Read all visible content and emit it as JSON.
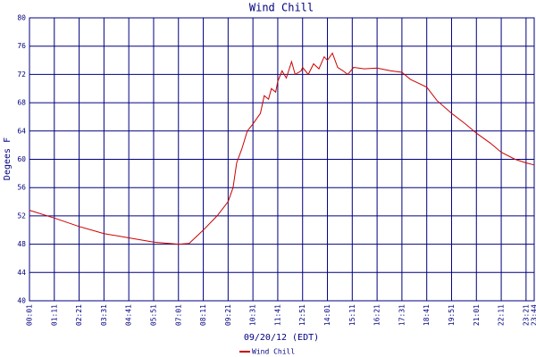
{
  "chart_data": {
    "type": "line",
    "title": "Wind Chill",
    "x_label": "09/20/12 (EDT)",
    "y_label": "Degees F",
    "xlim": [
      1,
      1424
    ],
    "ylim": [
      40,
      80
    ],
    "yticks": [
      40,
      44,
      48,
      52,
      56,
      60,
      64,
      68,
      72,
      76,
      80
    ],
    "xticks": [
      {
        "value": 1,
        "label": "00:01"
      },
      {
        "value": 71,
        "label": "01:11"
      },
      {
        "value": 141,
        "label": "02:21"
      },
      {
        "value": 211,
        "label": "03:31"
      },
      {
        "value": 281,
        "label": "04:41"
      },
      {
        "value": 351,
        "label": "05:51"
      },
      {
        "value": 421,
        "label": "07:01"
      },
      {
        "value": 491,
        "label": "08:11"
      },
      {
        "value": 561,
        "label": "09:21"
      },
      {
        "value": 631,
        "label": "10:31"
      },
      {
        "value": 701,
        "label": "11:41"
      },
      {
        "value": 771,
        "label": "12:51"
      },
      {
        "value": 841,
        "label": "14:01"
      },
      {
        "value": 911,
        "label": "15:11"
      },
      {
        "value": 981,
        "label": "16:21"
      },
      {
        "value": 1051,
        "label": "17:31"
      },
      {
        "value": 1121,
        "label": "18:41"
      },
      {
        "value": 1191,
        "label": "19:51"
      },
      {
        "value": 1261,
        "label": "21:01"
      },
      {
        "value": 1331,
        "label": "22:11"
      },
      {
        "value": 1401,
        "label": "23:21"
      },
      {
        "value": 1424,
        "label": "23:44"
      }
    ],
    "grid": true,
    "x": [
      1,
      71,
      141,
      211,
      281,
      351,
      421,
      451,
      491,
      530,
      561,
      575,
      585,
      600,
      615,
      631,
      652,
      663,
      675,
      683,
      695,
      701,
      713,
      725,
      740,
      750,
      767,
      771,
      787,
      802,
      817,
      832,
      841,
      855,
      870,
      885,
      898,
      915,
      945,
      981,
      1020,
      1051,
      1075,
      1121,
      1150,
      1191,
      1230,
      1261,
      1300,
      1331,
      1370,
      1401,
      1424
    ],
    "series": [
      {
        "name": "Wind Chill",
        "color": "#cc0000",
        "values": [
          52.8,
          51.7,
          50.5,
          49.5,
          48.9,
          48.3,
          48.0,
          48.1,
          50.0,
          52.0,
          54.0,
          56.0,
          59.5,
          61.5,
          64.0,
          65.0,
          66.5,
          69.0,
          68.5,
          70.0,
          69.5,
          71.0,
          72.5,
          71.5,
          73.8,
          72.0,
          72.5,
          73.0,
          72.0,
          73.5,
          72.8,
          74.5,
          74.0,
          75.0,
          73.0,
          72.5,
          72.0,
          73.0,
          72.8,
          72.9,
          72.5,
          72.3,
          71.3,
          70.2,
          68.3,
          66.5,
          65.0,
          63.7,
          62.3,
          61.0,
          60.0,
          59.5,
          59.2
        ]
      }
    ]
  }
}
